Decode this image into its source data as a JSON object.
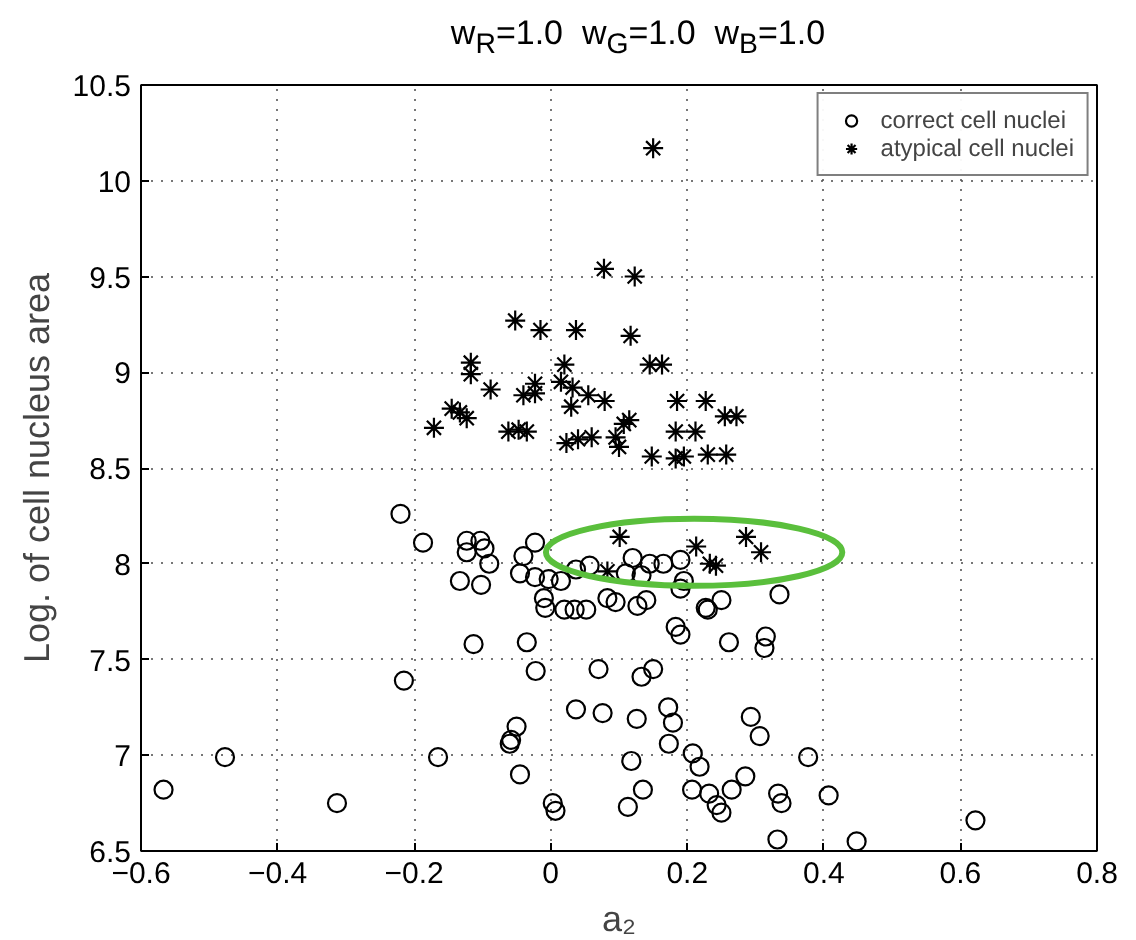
{
  "chart_data": {
    "type": "scatter",
    "title": "w$_{R}$=1.0  w$_{G}$=1.0  w$_{B}$=1.0",
    "xlabel": "a₂",
    "ylabel": "Log. of cell nucleus area",
    "xlim": [
      -0.6,
      0.8
    ],
    "ylim": [
      6.5,
      10.5
    ],
    "xticks": [
      {
        "value": -0.6,
        "label": "−0.6"
      },
      {
        "value": -0.4,
        "label": "−0.4"
      },
      {
        "value": -0.2,
        "label": "−0.2"
      },
      0,
      0.2,
      0.4,
      0.6,
      0.8
    ],
    "yticks": [
      6.5,
      7,
      7.5,
      8,
      8.5,
      9,
      9.5,
      10,
      10.5
    ],
    "grid": true,
    "legend": "top right",
    "series": [
      {
        "name": "correct cell nuclei",
        "color": "#000000",
        "marker": "circle",
        "x": [
          -0.22,
          -0.187,
          -0.123,
          -0.103,
          -0.123,
          -0.097,
          -0.09,
          -0.023,
          -0.04,
          -0.133,
          -0.102,
          -0.045,
          -0.023,
          -0.003,
          0.015,
          0.037,
          0.057,
          0.11,
          0.12,
          0.145,
          0.165,
          0.19,
          0.195,
          0.19,
          0.133,
          0.083,
          0.095,
          -0.01,
          -0.008,
          0.02,
          0.035,
          0.052,
          0.127,
          0.14,
          0.227,
          0.23,
          0.25,
          0.335,
          -0.113,
          -0.035,
          0.183,
          0.19,
          0.261,
          0.315,
          0.313,
          -0.215,
          -0.022,
          0.07,
          0.133,
          0.15,
          0.037,
          0.076,
          0.126,
          0.172,
          0.179,
          0.293,
          0.306,
          -0.05,
          -0.058,
          -0.06,
          0.173,
          0.208,
          -0.165,
          0.118,
          0.377,
          0.218,
          -0.567,
          -0.477,
          -0.313,
          -0.045,
          0.003,
          0.007,
          0.285,
          0.265,
          0.207,
          0.232,
          0.243,
          0.25,
          0.333,
          0.338,
          0.407,
          0.135,
          0.113,
          0.332,
          0.448,
          0.622
        ],
        "values": [
          8.26,
          8.11,
          8.12,
          8.12,
          8.06,
          8.08,
          8.0,
          8.11,
          8.04,
          7.91,
          7.89,
          7.95,
          7.93,
          7.92,
          7.91,
          7.97,
          7.99,
          7.95,
          8.03,
          8.0,
          8.0,
          8.02,
          7.91,
          7.87,
          7.94,
          7.82,
          7.8,
          7.82,
          7.77,
          7.76,
          7.76,
          7.76,
          7.78,
          7.81,
          7.77,
          7.76,
          7.81,
          7.84,
          7.58,
          7.59,
          7.67,
          7.63,
          7.59,
          7.62,
          7.56,
          7.39,
          7.44,
          7.45,
          7.41,
          7.45,
          7.24,
          7.22,
          7.19,
          7.25,
          7.17,
          7.2,
          7.1,
          7.15,
          7.08,
          7.06,
          7.06,
          7.01,
          6.99,
          6.97,
          6.99,
          6.94,
          6.82,
          6.99,
          6.75,
          6.9,
          6.75,
          6.71,
          6.89,
          6.82,
          6.82,
          6.8,
          6.74,
          6.7,
          6.8,
          6.75,
          6.79,
          6.82,
          6.73,
          6.56,
          6.55,
          6.66
        ]
      },
      {
        "name": "atypical cell nuclei",
        "color": "#000000",
        "marker": "cross",
        "x": [
          0.15,
          0.078,
          0.123,
          -0.052,
          -0.015,
          0.037,
          0.117,
          -0.117,
          -0.117,
          0.02,
          0.145,
          0.163,
          -0.088,
          -0.023,
          -0.023,
          -0.04,
          0.015,
          0.032,
          0.055,
          0.079,
          0.03,
          0.185,
          0.227,
          -0.145,
          -0.133,
          -0.123,
          -0.171,
          -0.062,
          -0.047,
          -0.035,
          0.115,
          0.107,
          0.095,
          0.1,
          0.023,
          0.04,
          0.06,
          0.183,
          0.212,
          0.255,
          0.272,
          0.148,
          0.183,
          0.195,
          0.23,
          0.257,
          0.101,
          0.083,
          0.213,
          0.233,
          0.242,
          0.286,
          0.308
        ],
        "values": [
          10.17,
          9.54,
          9.5,
          9.27,
          9.22,
          9.22,
          9.19,
          9.05,
          8.99,
          9.04,
          9.04,
          9.04,
          8.91,
          8.94,
          8.89,
          8.88,
          8.95,
          8.92,
          8.88,
          8.85,
          8.82,
          8.85,
          8.85,
          8.81,
          8.79,
          8.76,
          8.71,
          8.69,
          8.7,
          8.69,
          8.75,
          8.73,
          8.66,
          8.61,
          8.63,
          8.65,
          8.66,
          8.69,
          8.69,
          8.77,
          8.77,
          8.56,
          8.55,
          8.56,
          8.57,
          8.57,
          8.14,
          7.96,
          8.09,
          8.0,
          7.99,
          8.14,
          8.06
        ]
      }
    ]
  }
}
